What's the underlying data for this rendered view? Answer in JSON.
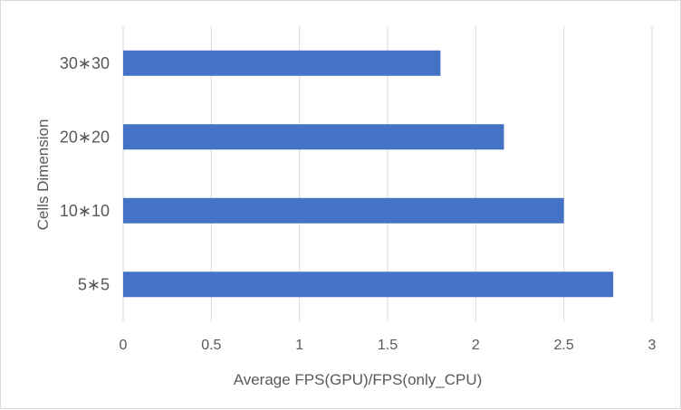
{
  "chart_data": {
    "type": "bar",
    "orientation": "horizontal",
    "title": "",
    "xlabel": "Average FPS(GPU)/FPS(only_CPU)",
    "ylabel": "Cells Dimension",
    "categories": [
      "5∗5",
      "10∗10",
      "20∗20",
      "30∗30"
    ],
    "values": [
      2.78,
      2.5,
      2.16,
      1.8
    ],
    "xlim": [
      0,
      3
    ],
    "xticks": [
      "0",
      "0.5",
      "1",
      "1.5",
      "2",
      "2.5",
      "3"
    ],
    "grid": "vertical",
    "legend": "none",
    "bar_color": "#4472c4",
    "grid_color": "#d9d9d9"
  }
}
